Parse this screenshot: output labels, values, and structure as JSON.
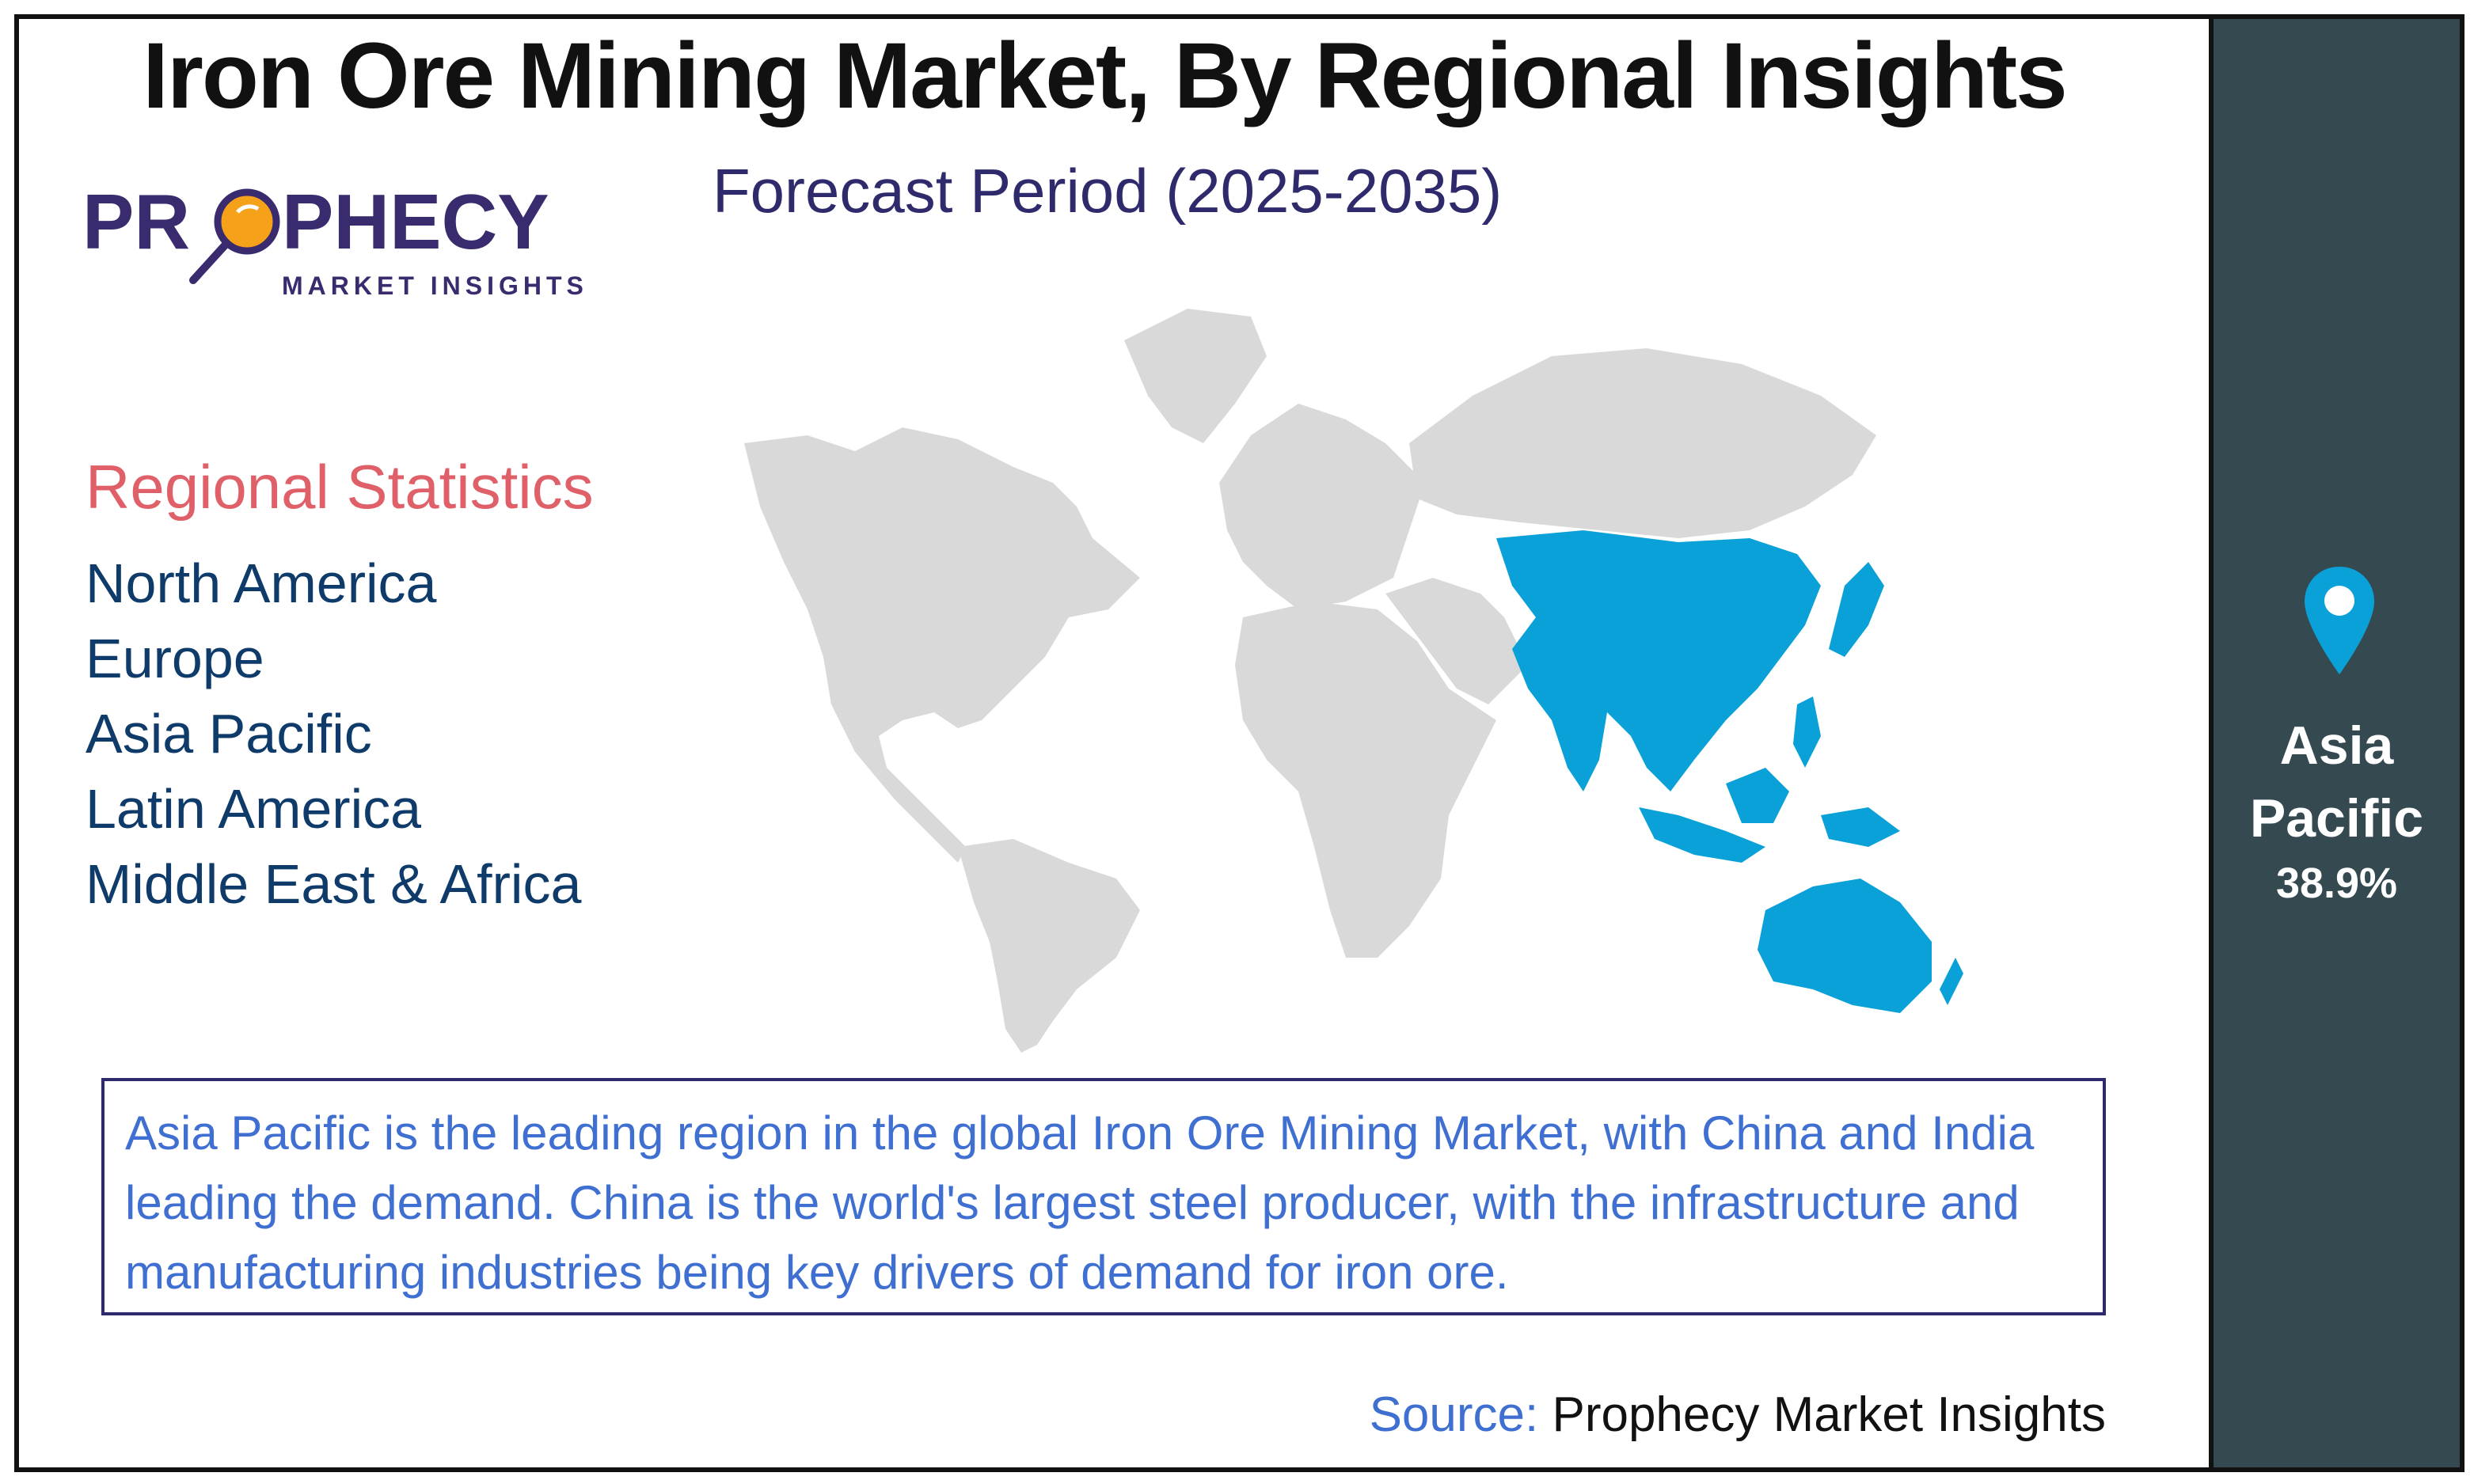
{
  "header": {
    "title": "Iron Ore Mining Market, By Regional Insights",
    "subtitle": "Forecast Period (2025-2035)"
  },
  "logo": {
    "name_part1": "PR",
    "name_part2": "PHECY",
    "tagline": "MARKET INSIGHTS",
    "icon": "magnifying-glass-icon"
  },
  "stats": {
    "heading": "Regional Statistics",
    "regions": [
      "North America",
      "Europe",
      "Asia Pacific",
      "Latin America",
      "Middle East & Africa"
    ]
  },
  "map": {
    "highlighted_region": "Asia Pacific",
    "highlight_color": "#0aa0d8",
    "base_color": "#d9d9d9"
  },
  "description": "Asia Pacific is the leading region in the global Iron Ore Mining Market, with China and India leading the demand. China is the world's largest steel producer, with the infrastructure and manufacturing industries being key drivers of demand for iron ore.",
  "source": {
    "label": "Source:",
    "value": "Prophecy Market Insights"
  },
  "sidebar": {
    "icon": "location-pin-icon",
    "region_line1": "Asia",
    "region_line2": "Pacific",
    "share": "38.9%"
  },
  "colors": {
    "sidebar_bg": "#354a50",
    "heading_accent": "#e0606a",
    "region_text": "#0f3b6a",
    "body_text": "#3f6fd1",
    "logo_purple": "#3a2a6e",
    "logo_orange": "#f5a11a"
  }
}
